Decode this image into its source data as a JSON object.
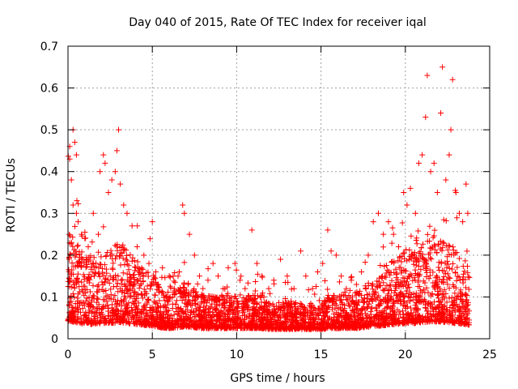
{
  "chart_data": {
    "type": "scatter",
    "title": "Day 040 of 2015, Rate Of TEC Index for receiver iqal",
    "xlabel": "GPS time / hours",
    "ylabel": "ROTI / TECUs",
    "xlim": [
      0,
      25
    ],
    "ylim": [
      0,
      0.7
    ],
    "xticks": [
      "0",
      "5",
      "10",
      "15",
      "20",
      "25"
    ],
    "yticks": [
      "0",
      "0.1",
      "0.2",
      "0.3",
      "0.4",
      "0.5",
      "0.6",
      "0.7"
    ],
    "grid": true,
    "marker": "+",
    "color": "#ff0000",
    "series": [
      {
        "name": "ROTI",
        "points": [
          [
            0.1,
            0.46
          ],
          [
            0.1,
            0.43
          ],
          [
            0.2,
            0.38
          ],
          [
            0.3,
            0.5
          ],
          [
            0.4,
            0.47
          ],
          [
            0.5,
            0.44
          ],
          [
            0.3,
            0.32
          ],
          [
            0.5,
            0.3
          ],
          [
            0.6,
            0.28
          ],
          [
            0.8,
            0.25
          ],
          [
            1.0,
            0.24
          ],
          [
            1.2,
            0.22
          ],
          [
            1.5,
            0.3
          ],
          [
            1.8,
            0.25
          ],
          [
            1.9,
            0.4
          ],
          [
            2.1,
            0.44
          ],
          [
            2.2,
            0.42
          ],
          [
            2.4,
            0.35
          ],
          [
            2.6,
            0.38
          ],
          [
            2.8,
            0.4
          ],
          [
            2.9,
            0.45
          ],
          [
            3.0,
            0.5
          ],
          [
            3.1,
            0.37
          ],
          [
            3.3,
            0.32
          ],
          [
            3.5,
            0.3
          ],
          [
            3.8,
            0.27
          ],
          [
            4.1,
            0.22
          ],
          [
            4.5,
            0.2
          ],
          [
            4.8,
            0.18
          ],
          [
            5.0,
            0.28
          ],
          [
            5.2,
            0.16
          ],
          [
            5.6,
            0.17
          ],
          [
            6.0,
            0.15
          ],
          [
            6.3,
            0.12
          ],
          [
            6.6,
            0.16
          ],
          [
            6.8,
            0.32
          ],
          [
            6.9,
            0.3
          ],
          [
            7.2,
            0.25
          ],
          [
            7.5,
            0.2
          ],
          [
            7.8,
            0.15
          ],
          [
            8.0,
            0.12
          ],
          [
            8.3,
            0.14
          ],
          [
            8.6,
            0.18
          ],
          [
            8.9,
            0.15
          ],
          [
            9.2,
            0.12
          ],
          [
            9.5,
            0.17
          ],
          [
            9.9,
            0.18
          ],
          [
            10.2,
            0.14
          ],
          [
            10.5,
            0.12
          ],
          [
            10.9,
            0.26
          ],
          [
            11.2,
            0.18
          ],
          [
            11.5,
            0.15
          ],
          [
            11.9,
            0.12
          ],
          [
            12.2,
            0.14
          ],
          [
            12.6,
            0.19
          ],
          [
            13.0,
            0.15
          ],
          [
            13.4,
            0.12
          ],
          [
            13.8,
            0.21
          ],
          [
            14.1,
            0.15
          ],
          [
            14.5,
            0.12
          ],
          [
            14.8,
            0.16
          ],
          [
            15.1,
            0.18
          ],
          [
            15.4,
            0.26
          ],
          [
            15.6,
            0.21
          ],
          [
            15.9,
            0.2
          ],
          [
            16.2,
            0.15
          ],
          [
            16.5,
            0.12
          ],
          [
            16.8,
            0.14
          ],
          [
            17.1,
            0.13
          ],
          [
            17.4,
            0.16
          ],
          [
            17.8,
            0.2
          ],
          [
            18.1,
            0.28
          ],
          [
            18.4,
            0.3
          ],
          [
            18.7,
            0.25
          ],
          [
            19.0,
            0.28
          ],
          [
            19.3,
            0.25
          ],
          [
            19.6,
            0.22
          ],
          [
            19.9,
            0.35
          ],
          [
            20.1,
            0.32
          ],
          [
            20.3,
            0.36
          ],
          [
            20.6,
            0.3
          ],
          [
            20.8,
            0.42
          ],
          [
            21.0,
            0.44
          ],
          [
            21.2,
            0.53
          ],
          [
            21.3,
            0.63
          ],
          [
            21.5,
            0.4
          ],
          [
            21.7,
            0.42
          ],
          [
            21.9,
            0.35
          ],
          [
            22.1,
            0.54
          ],
          [
            22.2,
            0.65
          ],
          [
            22.4,
            0.38
          ],
          [
            22.6,
            0.44
          ],
          [
            22.7,
            0.5
          ],
          [
            22.8,
            0.62
          ],
          [
            23.0,
            0.35
          ],
          [
            23.2,
            0.3
          ],
          [
            23.4,
            0.28
          ],
          [
            23.6,
            0.37
          ],
          [
            23.7,
            0.3
          ]
        ],
        "density_profile": [
          [
            0.0,
            0.14,
            0.18
          ],
          [
            0.5,
            0.12,
            0.14
          ],
          [
            1.0,
            0.1,
            0.12
          ],
          [
            1.5,
            0.1,
            0.12
          ],
          [
            2.0,
            0.11,
            0.13
          ],
          [
            2.5,
            0.11,
            0.13
          ],
          [
            3.0,
            0.12,
            0.14
          ],
          [
            3.5,
            0.11,
            0.12
          ],
          [
            4.0,
            0.1,
            0.11
          ],
          [
            4.5,
            0.09,
            0.1
          ],
          [
            5.0,
            0.08,
            0.09
          ],
          [
            5.5,
            0.06,
            0.07
          ],
          [
            6.0,
            0.05,
            0.06
          ],
          [
            6.5,
            0.06,
            0.07
          ],
          [
            7.0,
            0.07,
            0.08
          ],
          [
            7.5,
            0.06,
            0.07
          ],
          [
            8.0,
            0.05,
            0.06
          ],
          [
            8.5,
            0.05,
            0.06
          ],
          [
            9.0,
            0.05,
            0.06
          ],
          [
            9.5,
            0.05,
            0.06
          ],
          [
            10.0,
            0.05,
            0.06
          ],
          [
            10.5,
            0.05,
            0.06
          ],
          [
            11.0,
            0.05,
            0.06
          ],
          [
            11.5,
            0.05,
            0.06
          ],
          [
            12.0,
            0.04,
            0.05
          ],
          [
            12.5,
            0.04,
            0.05
          ],
          [
            13.0,
            0.04,
            0.05
          ],
          [
            13.5,
            0.04,
            0.05
          ],
          [
            14.0,
            0.04,
            0.05
          ],
          [
            14.5,
            0.04,
            0.05
          ],
          [
            15.0,
            0.04,
            0.05
          ],
          [
            15.5,
            0.05,
            0.06
          ],
          [
            16.0,
            0.05,
            0.06
          ],
          [
            16.5,
            0.05,
            0.06
          ],
          [
            17.0,
            0.05,
            0.06
          ],
          [
            17.5,
            0.06,
            0.07
          ],
          [
            18.0,
            0.07,
            0.08
          ],
          [
            18.5,
            0.08,
            0.09
          ],
          [
            19.0,
            0.09,
            0.1
          ],
          [
            19.5,
            0.1,
            0.11
          ],
          [
            20.0,
            0.11,
            0.12
          ],
          [
            20.5,
            0.11,
            0.12
          ],
          [
            21.0,
            0.12,
            0.14
          ],
          [
            21.5,
            0.13,
            0.15
          ],
          [
            22.0,
            0.13,
            0.15
          ],
          [
            22.5,
            0.12,
            0.14
          ],
          [
            23.0,
            0.11,
            0.13
          ],
          [
            23.5,
            0.1,
            0.12
          ],
          [
            23.8,
            0.09,
            0.1
          ]
        ]
      }
    ]
  }
}
